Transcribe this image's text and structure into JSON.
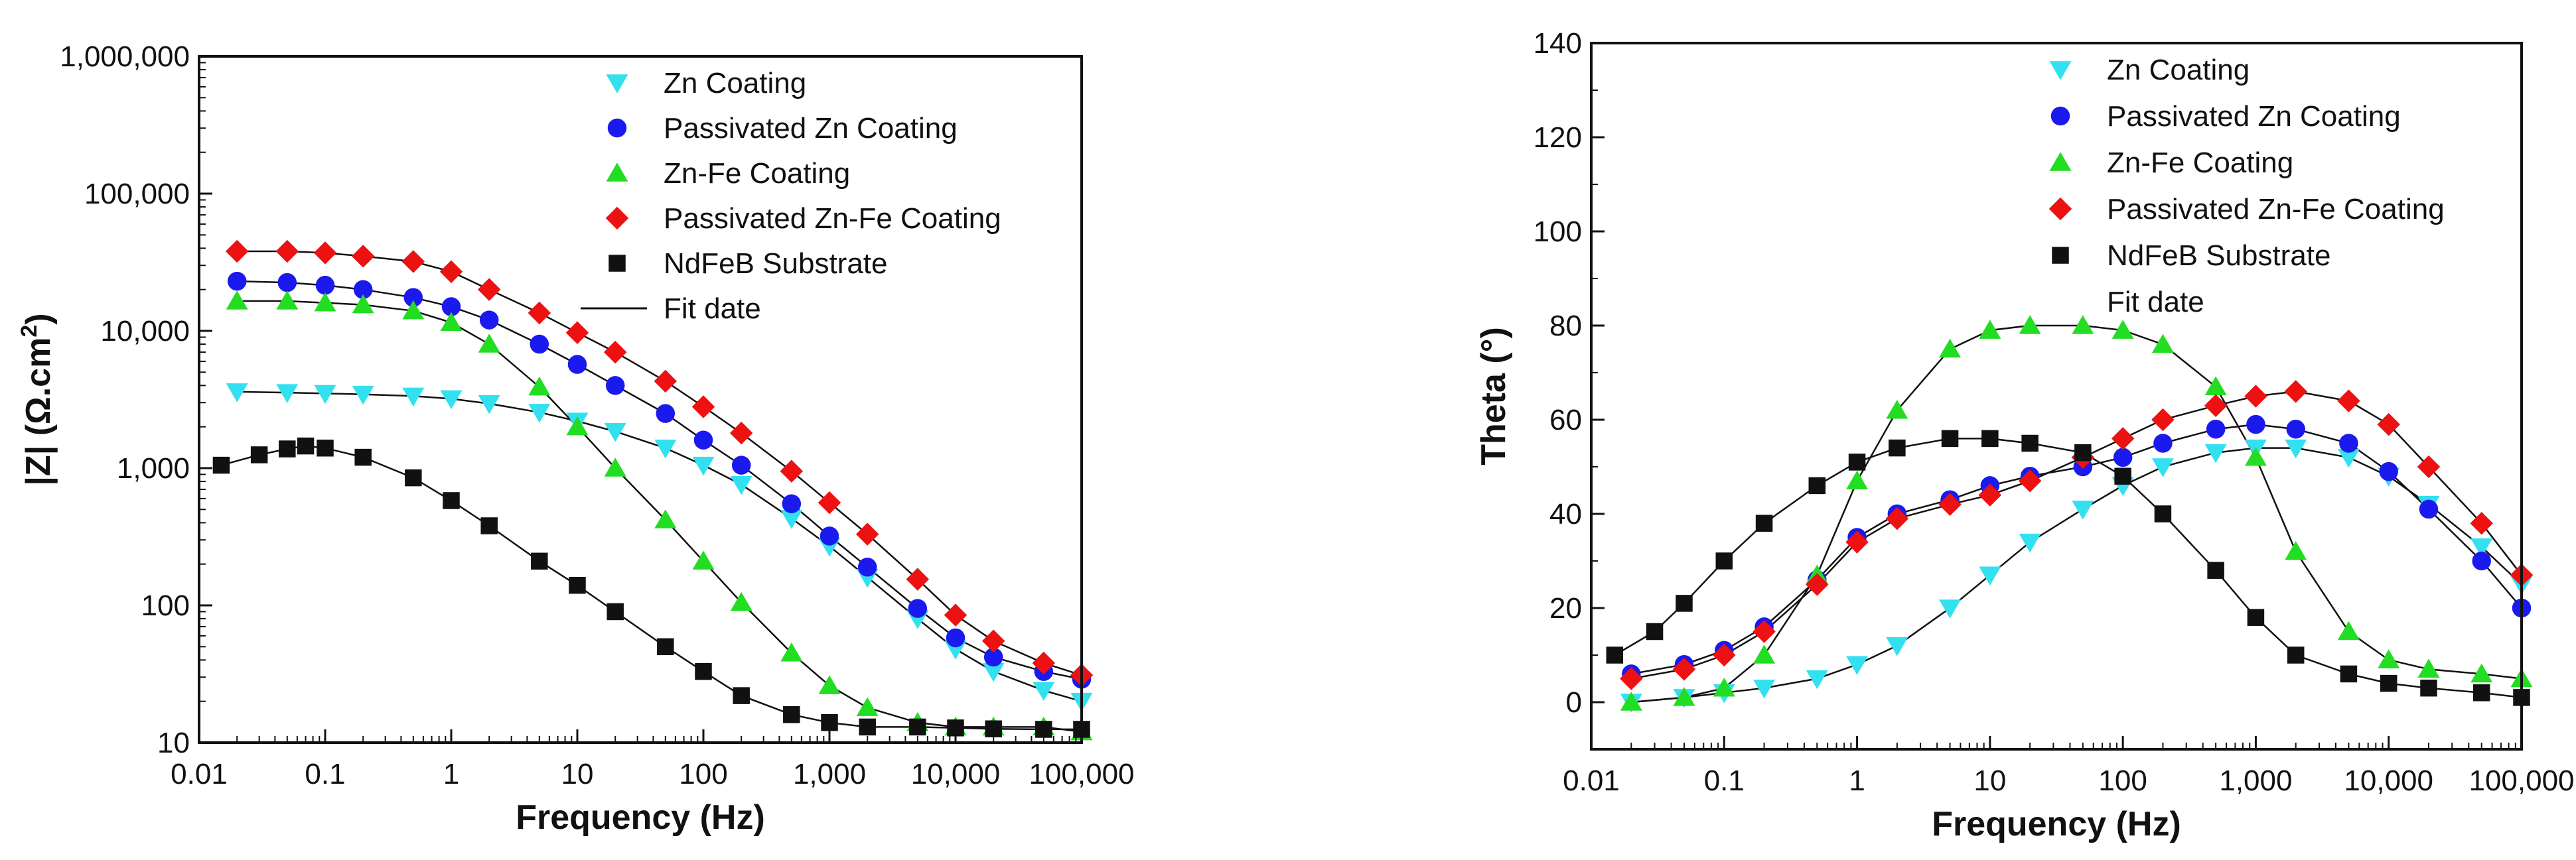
{
  "chart_data": [
    {
      "type": "scatter",
      "title": "",
      "xlabel": "Frequency (Hz)",
      "ylabel": "|Z| (Ω.cm",
      "ylabel_sup": "2",
      "ylabel_close": ")",
      "xscale": "log",
      "yscale": "log",
      "xlim": [
        0.01,
        100000
      ],
      "ylim": [
        10,
        1000000
      ],
      "xticks": [
        0.01,
        0.1,
        1,
        10,
        100,
        1000,
        10000,
        100000
      ],
      "xtick_labels": [
        "0.01",
        "0.1",
        "1",
        "10",
        "100",
        "1,000",
        "10,000",
        "100,000"
      ],
      "yticks": [
        10,
        100,
        1000,
        10000,
        100000,
        1000000
      ],
      "ytick_labels": [
        "10",
        "100",
        "1,000",
        "10,000",
        "100,000",
        "1,000,000"
      ],
      "legend_position": "top-right",
      "fit_label": "Fit date",
      "series": [
        {
          "name": "Zn Coating",
          "color": "#33e0f0",
          "marker": "triangle-down",
          "x": [
            0.02,
            0.05,
            0.1,
            0.2,
            0.5,
            1,
            2,
            5,
            10,
            20,
            50,
            100,
            200,
            500,
            1000,
            2000,
            5000,
            10000,
            20000,
            50000,
            100000
          ],
          "y": [
            3600,
            3550,
            3500,
            3450,
            3350,
            3200,
            2950,
            2550,
            2200,
            1850,
            1400,
            1050,
            760,
            430,
            270,
            160,
            80,
            48,
            33,
            24,
            20
          ]
        },
        {
          "name": "Passivated Zn Coating",
          "color": "#1a1aee",
          "marker": "circle",
          "x": [
            0.02,
            0.05,
            0.1,
            0.2,
            0.5,
            1,
            2,
            5,
            10,
            20,
            50,
            100,
            200,
            500,
            1000,
            2000,
            5000,
            10000,
            20000,
            50000,
            100000
          ],
          "y": [
            23000,
            22500,
            21500,
            20000,
            17500,
            15000,
            12000,
            8000,
            5700,
            4000,
            2500,
            1600,
            1050,
            550,
            320,
            190,
            95,
            58,
            42,
            33,
            29
          ]
        },
        {
          "name": "Zn-Fe Coating",
          "color": "#22dd22",
          "marker": "triangle-up",
          "x": [
            0.02,
            0.05,
            0.1,
            0.2,
            0.5,
            1,
            2,
            5,
            10,
            20,
            50,
            100,
            200,
            500,
            1000,
            2000,
            5000,
            10000,
            20000,
            50000,
            100000
          ],
          "y": [
            16500,
            16500,
            16000,
            15500,
            14000,
            11500,
            8000,
            3900,
            2000,
            1000,
            420,
            210,
            105,
            45,
            26,
            18,
            14,
            13,
            13,
            13,
            12
          ]
        },
        {
          "name": "Passivated Zn-Fe Coating",
          "color": "#ee1111",
          "marker": "diamond",
          "x": [
            0.02,
            0.05,
            0.1,
            0.2,
            0.5,
            1,
            2,
            5,
            10,
            20,
            50,
            100,
            200,
            500,
            1000,
            2000,
            5000,
            10000,
            20000,
            50000,
            100000
          ],
          "y": [
            38000,
            38000,
            37000,
            35000,
            32000,
            27000,
            20000,
            13500,
            9700,
            7000,
            4300,
            2800,
            1800,
            950,
            560,
            330,
            155,
            85,
            55,
            38,
            31
          ]
        },
        {
          "name": "NdFeB Substrate",
          "color": "#111111",
          "marker": "square",
          "x": [
            0.015,
            0.03,
            0.05,
            0.07,
            0.1,
            0.2,
            0.5,
            1,
            2,
            5,
            10,
            20,
            50,
            100,
            200,
            500,
            1000,
            2000,
            5000,
            10000,
            20000,
            50000,
            100000
          ],
          "y": [
            1050,
            1250,
            1380,
            1450,
            1400,
            1200,
            850,
            580,
            380,
            210,
            140,
            90,
            50,
            33,
            22,
            16,
            14,
            13,
            13,
            12.8,
            12.6,
            12.5,
            12.5
          ]
        }
      ]
    },
    {
      "type": "scatter",
      "title": "",
      "xlabel": "Frequency (Hz)",
      "ylabel": "Theta (°)",
      "xscale": "log",
      "yscale": "linear",
      "xlim": [
        0.01,
        100000
      ],
      "ylim": [
        -10,
        140
      ],
      "xticks": [
        0.01,
        0.1,
        1,
        10,
        100,
        1000,
        10000,
        100000
      ],
      "xtick_labels": [
        "0.01",
        "0.1",
        "1",
        "10",
        "100",
        "1,000",
        "10,000",
        "100,000"
      ],
      "yticks": [
        0,
        20,
        40,
        60,
        80,
        100,
        120,
        140
      ],
      "ytick_labels": [
        "0",
        "20",
        "40",
        "60",
        "80",
        "100",
        "120",
        "140"
      ],
      "legend_position": "top-right",
      "fit_label": "Fit date",
      "series": [
        {
          "name": "Zn Coating",
          "color": "#33e0f0",
          "marker": "triangle-down",
          "x": [
            0.02,
            0.05,
            0.1,
            0.2,
            0.5,
            1,
            2,
            5,
            10,
            20,
            50,
            100,
            200,
            500,
            1000,
            2000,
            5000,
            10000,
            20000,
            50000,
            100000
          ],
          "y": [
            0,
            1,
            2,
            3,
            5,
            8,
            12,
            20,
            27,
            34,
            41,
            46,
            50,
            53,
            54,
            54,
            52,
            48,
            42,
            33,
            25
          ]
        },
        {
          "name": "Passivated Zn Coating",
          "color": "#1a1aee",
          "marker": "circle",
          "x": [
            0.02,
            0.05,
            0.1,
            0.2,
            0.5,
            1,
            2,
            5,
            10,
            20,
            50,
            100,
            200,
            500,
            1000,
            2000,
            5000,
            10000,
            20000,
            50000,
            100000
          ],
          "y": [
            6,
            8,
            11,
            16,
            26,
            35,
            40,
            43,
            46,
            48,
            50,
            52,
            55,
            58,
            59,
            58,
            55,
            49,
            41,
            30,
            20
          ]
        },
        {
          "name": "Zn-Fe Coating",
          "color": "#22dd22",
          "marker": "triangle-up",
          "x": [
            0.02,
            0.05,
            0.1,
            0.2,
            0.5,
            1,
            2,
            5,
            10,
            20,
            50,
            100,
            200,
            500,
            1000,
            2000,
            5000,
            10000,
            20000,
            50000,
            100000
          ],
          "y": [
            0,
            1,
            3,
            10,
            27,
            47,
            62,
            75,
            79,
            80,
            80,
            79,
            76,
            67,
            52,
            32,
            15,
            9,
            7,
            6,
            5
          ]
        },
        {
          "name": "Passivated Zn-Fe Coating",
          "color": "#ee1111",
          "marker": "diamond",
          "x": [
            0.02,
            0.05,
            0.1,
            0.2,
            0.5,
            1,
            2,
            5,
            10,
            20,
            50,
            100,
            200,
            500,
            1000,
            2000,
            5000,
            10000,
            20000,
            50000,
            100000
          ],
          "y": [
            5,
            7,
            10,
            15,
            25,
            34,
            39,
            42,
            44,
            47,
            52,
            56,
            60,
            63,
            65,
            66,
            64,
            59,
            50,
            38,
            27
          ]
        },
        {
          "name": "NdFeB Substrate",
          "color": "#111111",
          "marker": "square",
          "x": [
            0.015,
            0.03,
            0.05,
            0.1,
            0.2,
            0.5,
            1,
            2,
            5,
            10,
            20,
            50,
            100,
            200,
            500,
            1000,
            2000,
            5000,
            10000,
            20000,
            50000,
            100000
          ],
          "y": [
            10,
            15,
            21,
            30,
            38,
            46,
            51,
            54,
            56,
            56,
            55,
            53,
            48,
            40,
            28,
            18,
            10,
            6,
            4,
            3,
            2,
            1
          ]
        }
      ]
    }
  ]
}
